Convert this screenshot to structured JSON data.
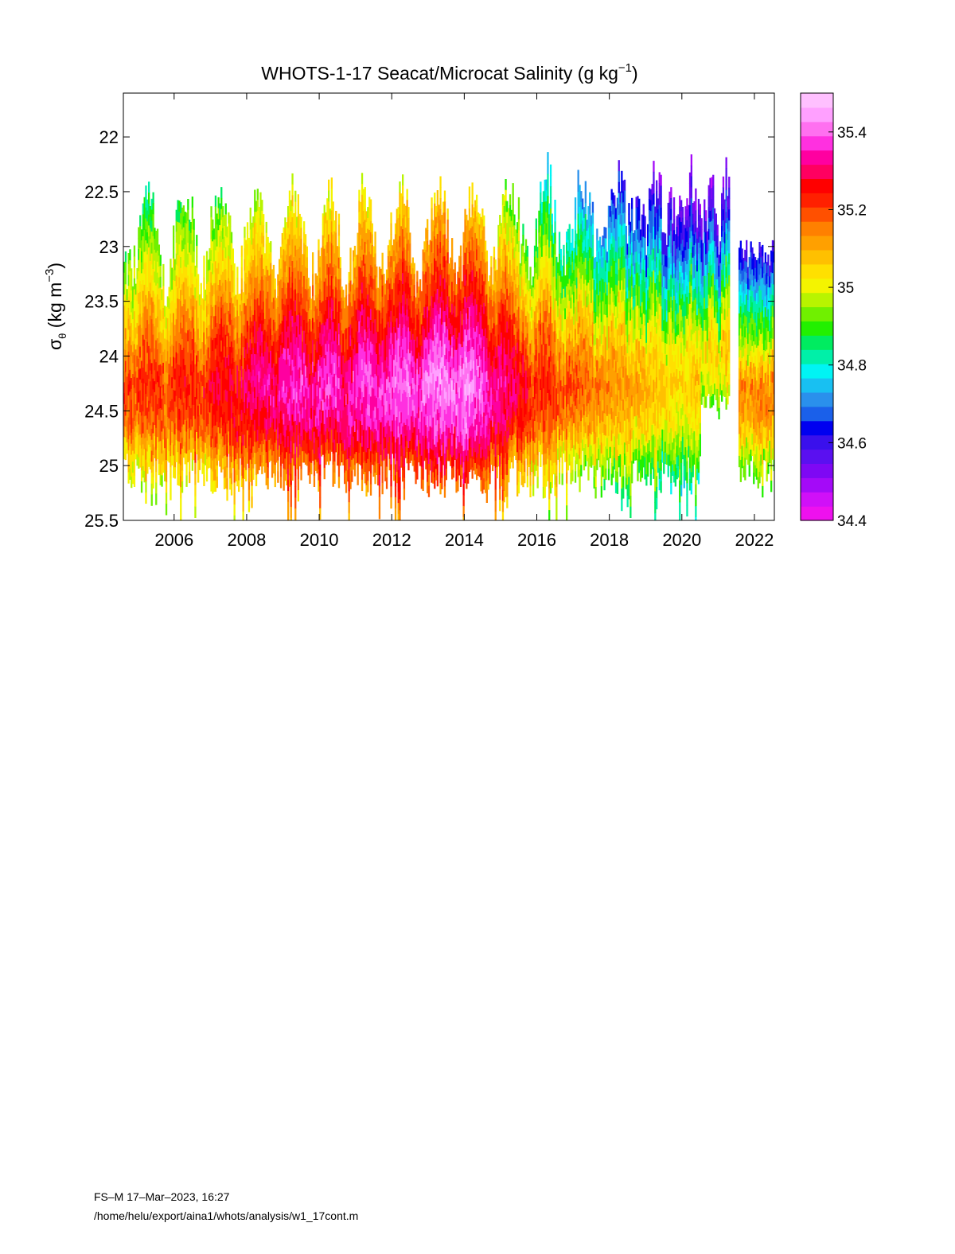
{
  "chart_data": {
    "type": "heatmap",
    "title": "WHOTS-1-17 Seacat/Microcat  Salinity (g kg",
    "title_superscript": "−1",
    "title_suffix": ")",
    "xlabel": "",
    "ylabel": "σ",
    "ylabel_subscript": "θ",
    "ylabel_units": " (kg m",
    "ylabel_superscript": "−3",
    "ylabel_suffix": ")",
    "x_ticks": [
      2006,
      2008,
      2010,
      2012,
      2014,
      2016,
      2018,
      2020,
      2022
    ],
    "xlim": [
      2004.6,
      2022.55
    ],
    "y_ticks": [
      "22",
      "22.5",
      "23",
      "23.5",
      "24",
      "24.5",
      "25",
      "25.5"
    ],
    "ylim": [
      25.5,
      21.6
    ],
    "y_inverted": true,
    "colorbar": {
      "ticks": [
        "34.4",
        "34.6",
        "34.8",
        "35",
        "35.2",
        "35.4"
      ],
      "range": [
        34.4,
        35.5
      ],
      "colors": [
        "#ee11ee",
        "#d010f8",
        "#a40af8",
        "#7e08f4",
        "#5a10f0",
        "#3a10ec",
        "#0000f0",
        "#1a60ea",
        "#2a90ec",
        "#18c0f2",
        "#00f4f4",
        "#00f0a8",
        "#00ec60",
        "#22f000",
        "#70f000",
        "#b8f400",
        "#f4f400",
        "#ffe000",
        "#ffc000",
        "#ffa000",
        "#ff8000",
        "#ff5000",
        "#ff2000",
        "#ff0000",
        "#ff0060",
        "#ff00a0",
        "#ff30e0",
        "#ff70f0",
        "#ffa0ff",
        "#ffc0ff"
      ]
    },
    "core_salinity_by_year": [
      {
        "year": 2005,
        "value": 35.22
      },
      {
        "year": 2007,
        "value": 35.26
      },
      {
        "year": 2009,
        "value": 35.36
      },
      {
        "year": 2011,
        "value": 35.38
      },
      {
        "year": 2013,
        "value": 35.42
      },
      {
        "year": 2014,
        "value": 35.44
      },
      {
        "year": 2016,
        "value": 35.24
      },
      {
        "year": 2018,
        "value": 35.14
      },
      {
        "year": 2020,
        "value": 35.05
      },
      {
        "year": 2022,
        "value": 35.16
      }
    ],
    "grid": false,
    "legend": "colorbar right"
  },
  "footer": {
    "line1": "FS–M  17–Mar–2023, 16:27",
    "line2": "/home/helu/export/aina1/whots/analysis/w1_17cont.m"
  }
}
